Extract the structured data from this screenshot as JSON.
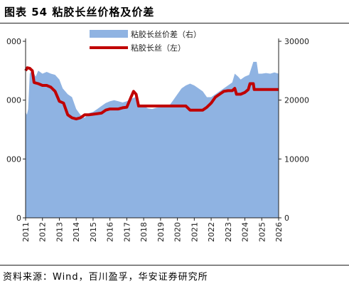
{
  "header": {
    "title": "图表 54 粘胶长丝价格及价差"
  },
  "footer": {
    "source": "资料来源：Wind，百川盈孚，华安证券研究所"
  },
  "chart_data": {
    "type": "area+line",
    "title": "",
    "legend": {
      "placement": "top-center",
      "entries": [
        "粘胶长丝价差（右）",
        "粘胶长丝（左）"
      ]
    },
    "x": {
      "ticks": [
        "2011",
        "2012",
        "2013",
        "2014",
        "2015",
        "2016",
        "2017",
        "2018",
        "2019",
        "2020",
        "2021",
        "2022",
        "2023",
        "2024",
        "2025",
        "2026"
      ],
      "range": [
        2011,
        2026
      ]
    },
    "y_left": {
      "visible_tick_labels": [
        "000",
        "000",
        "000",
        "0"
      ],
      "tick_values": [
        0,
        10000,
        20000,
        30000
      ],
      "range": [
        0,
        30000
      ]
    },
    "y_right": {
      "tick_labels": [
        "0",
        "10000",
        "20000",
        "30000"
      ],
      "range": [
        0,
        30000
      ]
    },
    "series": [
      {
        "name": "粘胶长丝价差（右）",
        "kind": "area",
        "color": "#8FB3E2",
        "points": [
          [
            2011.0,
            18000
          ],
          [
            2011.08,
            17500
          ],
          [
            2011.15,
            18500
          ],
          [
            2011.25,
            24500
          ],
          [
            2011.35,
            25000
          ],
          [
            2011.5,
            24500
          ],
          [
            2011.6,
            24000
          ],
          [
            2011.75,
            25000
          ],
          [
            2012.0,
            24500
          ],
          [
            2012.25,
            24800
          ],
          [
            2012.5,
            24500
          ],
          [
            2012.75,
            24300
          ],
          [
            2013.0,
            23500
          ],
          [
            2013.2,
            22000
          ],
          [
            2013.5,
            21000
          ],
          [
            2013.75,
            20500
          ],
          [
            2014.0,
            18500
          ],
          [
            2014.25,
            17500
          ],
          [
            2014.5,
            17000
          ],
          [
            2014.75,
            17800
          ],
          [
            2015.0,
            18000
          ],
          [
            2015.25,
            18500
          ],
          [
            2015.5,
            19000
          ],
          [
            2015.75,
            19500
          ],
          [
            2016.0,
            19800
          ],
          [
            2016.25,
            20000
          ],
          [
            2016.5,
            19800
          ],
          [
            2016.75,
            19600
          ],
          [
            2017.0,
            19800
          ],
          [
            2017.25,
            20200
          ],
          [
            2017.5,
            20500
          ],
          [
            2017.75,
            19200
          ],
          [
            2018.0,
            19000
          ],
          [
            2018.25,
            18600
          ],
          [
            2018.5,
            18500
          ],
          [
            2018.75,
            18700
          ],
          [
            2019.0,
            18800
          ],
          [
            2019.25,
            19200
          ],
          [
            2019.5,
            19000
          ],
          [
            2019.75,
            20000
          ],
          [
            2020.0,
            21000
          ],
          [
            2020.25,
            22000
          ],
          [
            2020.5,
            22500
          ],
          [
            2020.75,
            22800
          ],
          [
            2021.0,
            22500
          ],
          [
            2021.25,
            22000
          ],
          [
            2021.5,
            21500
          ],
          [
            2021.75,
            20500
          ],
          [
            2022.0,
            20500
          ],
          [
            2022.25,
            21000
          ],
          [
            2022.5,
            21500
          ],
          [
            2022.75,
            22000
          ],
          [
            2023.0,
            22500
          ],
          [
            2023.25,
            23000
          ],
          [
            2023.4,
            24500
          ],
          [
            2023.6,
            24000
          ],
          [
            2023.75,
            23500
          ],
          [
            2024.0,
            24000
          ],
          [
            2024.25,
            24300
          ],
          [
            2024.5,
            26500
          ],
          [
            2024.7,
            26500
          ],
          [
            2024.8,
            24500
          ],
          [
            2025.0,
            24500
          ],
          [
            2025.25,
            24600
          ],
          [
            2025.5,
            24500
          ],
          [
            2025.75,
            24700
          ],
          [
            2026.0,
            24500
          ]
        ]
      },
      {
        "name": "粘胶长丝（左）",
        "kind": "line",
        "color": "#C00000",
        "points": [
          [
            2011.0,
            25000
          ],
          [
            2011.1,
            25500
          ],
          [
            2011.25,
            25400
          ],
          [
            2011.4,
            25000
          ],
          [
            2011.5,
            23000
          ],
          [
            2011.75,
            22800
          ],
          [
            2012.0,
            22500
          ],
          [
            2012.25,
            22500
          ],
          [
            2012.5,
            22200
          ],
          [
            2012.75,
            21500
          ],
          [
            2013.0,
            19800
          ],
          [
            2013.25,
            19500
          ],
          [
            2013.5,
            17500
          ],
          [
            2013.75,
            17000
          ],
          [
            2014.0,
            16800
          ],
          [
            2014.25,
            17000
          ],
          [
            2014.5,
            17500
          ],
          [
            2014.75,
            17500
          ],
          [
            2015.0,
            17600
          ],
          [
            2015.5,
            17800
          ],
          [
            2015.75,
            18300
          ],
          [
            2016.0,
            18500
          ],
          [
            2016.5,
            18500
          ],
          [
            2016.75,
            18700
          ],
          [
            2017.0,
            18800
          ],
          [
            2017.25,
            20500
          ],
          [
            2017.4,
            21500
          ],
          [
            2017.55,
            21000
          ],
          [
            2017.7,
            19000
          ],
          [
            2018.0,
            19000
          ],
          [
            2018.5,
            19000
          ],
          [
            2019.0,
            19000
          ],
          [
            2019.5,
            19000
          ],
          [
            2020.0,
            19000
          ],
          [
            2020.5,
            19000
          ],
          [
            2020.75,
            18300
          ],
          [
            2021.0,
            18300
          ],
          [
            2021.5,
            18300
          ],
          [
            2021.75,
            18800
          ],
          [
            2022.0,
            19500
          ],
          [
            2022.25,
            20500
          ],
          [
            2022.5,
            21000
          ],
          [
            2022.75,
            21500
          ],
          [
            2023.0,
            21600
          ],
          [
            2023.25,
            21600
          ],
          [
            2023.4,
            22000
          ],
          [
            2023.5,
            21000
          ],
          [
            2023.75,
            21000
          ],
          [
            2024.0,
            21300
          ],
          [
            2024.2,
            21800
          ],
          [
            2024.3,
            22800
          ],
          [
            2024.5,
            22800
          ],
          [
            2024.55,
            21800
          ],
          [
            2025.0,
            21800
          ],
          [
            2025.5,
            21800
          ],
          [
            2026.0,
            21800
          ]
        ]
      }
    ]
  }
}
